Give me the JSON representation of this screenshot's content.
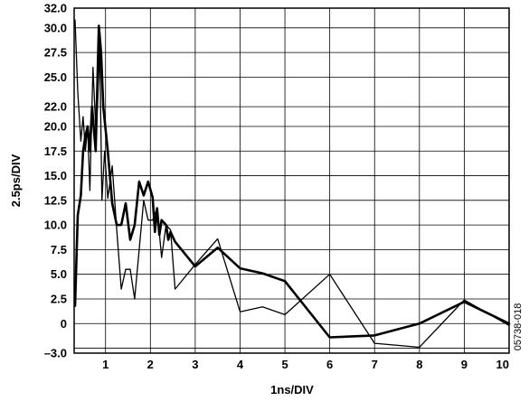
{
  "figure_id": "05738-018",
  "chart_data": {
    "type": "line",
    "xlabel": "1ns/DIV",
    "ylabel": "2.5ps/DIV",
    "xlim": [
      0.3,
      10
    ],
    "ylim": [
      -3.0,
      32.0
    ],
    "x_ticks": [
      1,
      2,
      3,
      4,
      5,
      6,
      7,
      8,
      9,
      10
    ],
    "x_tick_labels": [
      "1",
      "2",
      "3",
      "4",
      "5",
      "6",
      "7",
      "8",
      "9",
      "10"
    ],
    "y_gridlines": [
      -3.0,
      -2.5,
      0,
      2.5,
      5.0,
      7.5,
      10.0,
      12.5,
      15.0,
      17.5,
      20.0,
      22.0,
      25.0,
      27.5,
      30.0,
      32.0
    ],
    "y_ticks": [
      {
        "value": 32.0,
        "label": "32.0"
      },
      {
        "value": 30.0,
        "label": "30.0"
      },
      {
        "value": 27.5,
        "label": "27.5"
      },
      {
        "value": 25.0,
        "label": "25.0"
      },
      {
        "value": 22.0,
        "label": "22.0"
      },
      {
        "value": 20.0,
        "label": "20.0"
      },
      {
        "value": 17.5,
        "label": "17.5"
      },
      {
        "value": 15.0,
        "label": "15.0"
      },
      {
        "value": 12.5,
        "label": "12.5"
      },
      {
        "value": 10.0,
        "label": "10.0"
      },
      {
        "value": 7.5,
        "label": "7.5"
      },
      {
        "value": 5.0,
        "label": "5.0"
      },
      {
        "value": 2.5,
        "label": "2.5"
      },
      {
        "value": 0,
        "label": "0"
      },
      {
        "value": -3.0,
        "label": "–3.0"
      }
    ],
    "grid": true,
    "series": [
      {
        "color": "#000000",
        "weight": "thick",
        "points": [
          [
            0.32,
            1.8
          ],
          [
            0.38,
            11.0
          ],
          [
            0.45,
            13.0
          ],
          [
            0.5,
            17.5
          ],
          [
            0.55,
            19.0
          ],
          [
            0.6,
            20.0
          ],
          [
            0.65,
            17.5
          ],
          [
            0.7,
            22.0
          ],
          [
            0.78,
            17.5
          ],
          [
            0.85,
            30.2
          ],
          [
            0.9,
            27.5
          ],
          [
            0.95,
            22.0
          ],
          [
            1.05,
            17.5
          ],
          [
            1.15,
            12.2
          ],
          [
            1.25,
            10.0
          ],
          [
            1.35,
            10.0
          ],
          [
            1.45,
            12.2
          ],
          [
            1.55,
            8.5
          ],
          [
            1.65,
            10.0
          ],
          [
            1.75,
            14.4
          ],
          [
            1.85,
            13.0
          ],
          [
            1.95,
            14.4
          ],
          [
            2.05,
            12.8
          ],
          [
            2.1,
            9.3
          ],
          [
            2.15,
            11.7
          ],
          [
            2.2,
            9.0
          ],
          [
            2.25,
            10.5
          ],
          [
            2.35,
            10.0
          ],
          [
            2.4,
            8.5
          ],
          [
            2.45,
            9.3
          ],
          [
            2.55,
            8.3
          ],
          [
            3.0,
            5.8
          ],
          [
            3.5,
            7.7
          ],
          [
            4.0,
            5.6
          ],
          [
            4.5,
            5.1
          ],
          [
            5.0,
            4.3
          ],
          [
            6.0,
            -1.4
          ],
          [
            7.0,
            -1.2
          ],
          [
            8.0,
            0.0
          ],
          [
            9.0,
            2.2
          ],
          [
            10.0,
            0.0
          ]
        ]
      },
      {
        "color": "#000000",
        "weight": "thin",
        "points": [
          [
            0.32,
            30.8
          ],
          [
            0.38,
            23.5
          ],
          [
            0.45,
            18.5
          ],
          [
            0.5,
            21.0
          ],
          [
            0.55,
            17.5
          ],
          [
            0.6,
            20.0
          ],
          [
            0.65,
            13.5
          ],
          [
            0.72,
            26.0
          ],
          [
            0.78,
            20.0
          ],
          [
            0.82,
            22.0
          ],
          [
            0.87,
            28.0
          ],
          [
            0.92,
            12.5
          ],
          [
            0.98,
            17.5
          ],
          [
            1.05,
            12.7
          ],
          [
            1.15,
            16.0
          ],
          [
            1.25,
            9.5
          ],
          [
            1.35,
            3.5
          ],
          [
            1.45,
            5.5
          ],
          [
            1.55,
            5.5
          ],
          [
            1.65,
            2.5
          ],
          [
            1.75,
            7.5
          ],
          [
            1.85,
            12.5
          ],
          [
            1.95,
            10.5
          ],
          [
            2.05,
            10.5
          ],
          [
            2.15,
            11.7
          ],
          [
            2.25,
            6.7
          ],
          [
            2.35,
            10.0
          ],
          [
            2.45,
            9.5
          ],
          [
            2.55,
            3.5
          ],
          [
            3.0,
            6.0
          ],
          [
            3.5,
            8.6
          ],
          [
            4.0,
            1.2
          ],
          [
            4.5,
            1.7
          ],
          [
            5.0,
            0.9
          ],
          [
            6.0,
            5.0
          ],
          [
            7.0,
            -2.0
          ],
          [
            8.0,
            -2.4
          ],
          [
            9.0,
            2.4
          ],
          [
            10.0,
            -0.2
          ]
        ]
      }
    ]
  }
}
